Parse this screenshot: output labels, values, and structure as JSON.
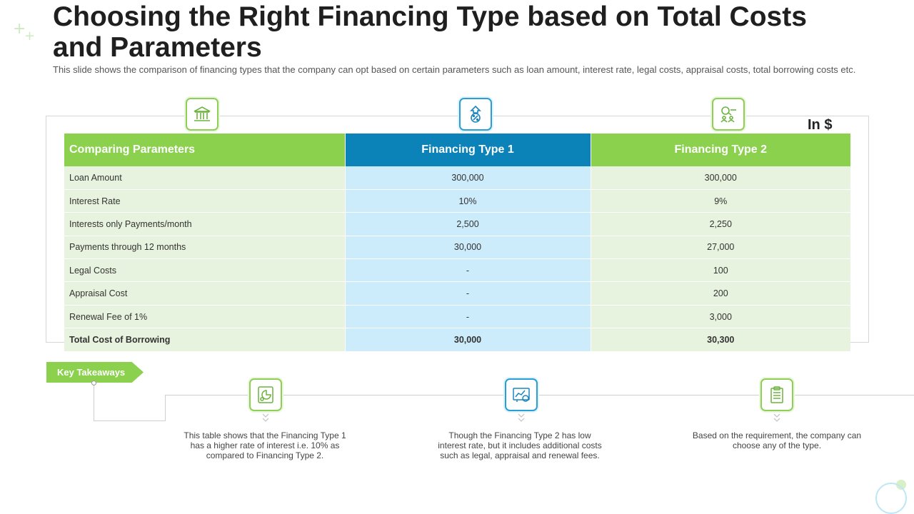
{
  "page": {
    "title": "Choosing the Right Financing Type based on Total Costs and Parameters",
    "subtitle": "This slide shows the comparison of financing types that the company can opt based on certain parameters such as loan amount, interest rate, legal costs, appraisal costs, total borrowing costs etc.",
    "unit_label": "In $"
  },
  "header_icons": [
    {
      "icon": "bank-icon",
      "color": "#8fcf55"
    },
    {
      "icon": "percent-upload-icon",
      "color": "#2a9fd6"
    },
    {
      "icon": "search-people-icon",
      "color": "#8fcf55"
    }
  ],
  "table": {
    "headers": [
      "Comparing Parameters",
      "Financing Type 1",
      "Financing Type 2"
    ],
    "rows": [
      [
        "Loan Amount",
        "300,000",
        "300,000"
      ],
      [
        "Interest Rate",
        "10%",
        "9%"
      ],
      [
        "Interests only Payments/month",
        "2,500",
        "2,250"
      ],
      [
        "Payments through 12 months",
        "30,000",
        "27,000"
      ],
      [
        "Legal Costs",
        "-",
        "100"
      ],
      [
        "Appraisal Cost",
        "-",
        "200"
      ],
      [
        "Renewal Fee of 1%",
        "-",
        "3,000"
      ],
      [
        "Total Cost of Borrowing",
        "30,000",
        "30,300"
      ]
    ]
  },
  "takeaways": {
    "label": "Key Takeaways",
    "items": [
      {
        "icon": "pie-chart-document-icon",
        "text": "This table shows that the Financing Type 1 has a higher rate of interest i.e. 10% as compared to Financing Type 2."
      },
      {
        "icon": "analytics-report-icon",
        "text": "Though the Financing Type 2 has low interest rate, but it includes additional costs such as legal, appraisal and renewal fees."
      },
      {
        "icon": "clipboard-icon",
        "text": "Based on the requirement, the company can choose any of the type."
      }
    ]
  },
  "colors": {
    "green": "#8cd14e",
    "blue": "#0b83b8",
    "light_green": "#e7f3de",
    "light_blue": "#ccebfb"
  }
}
